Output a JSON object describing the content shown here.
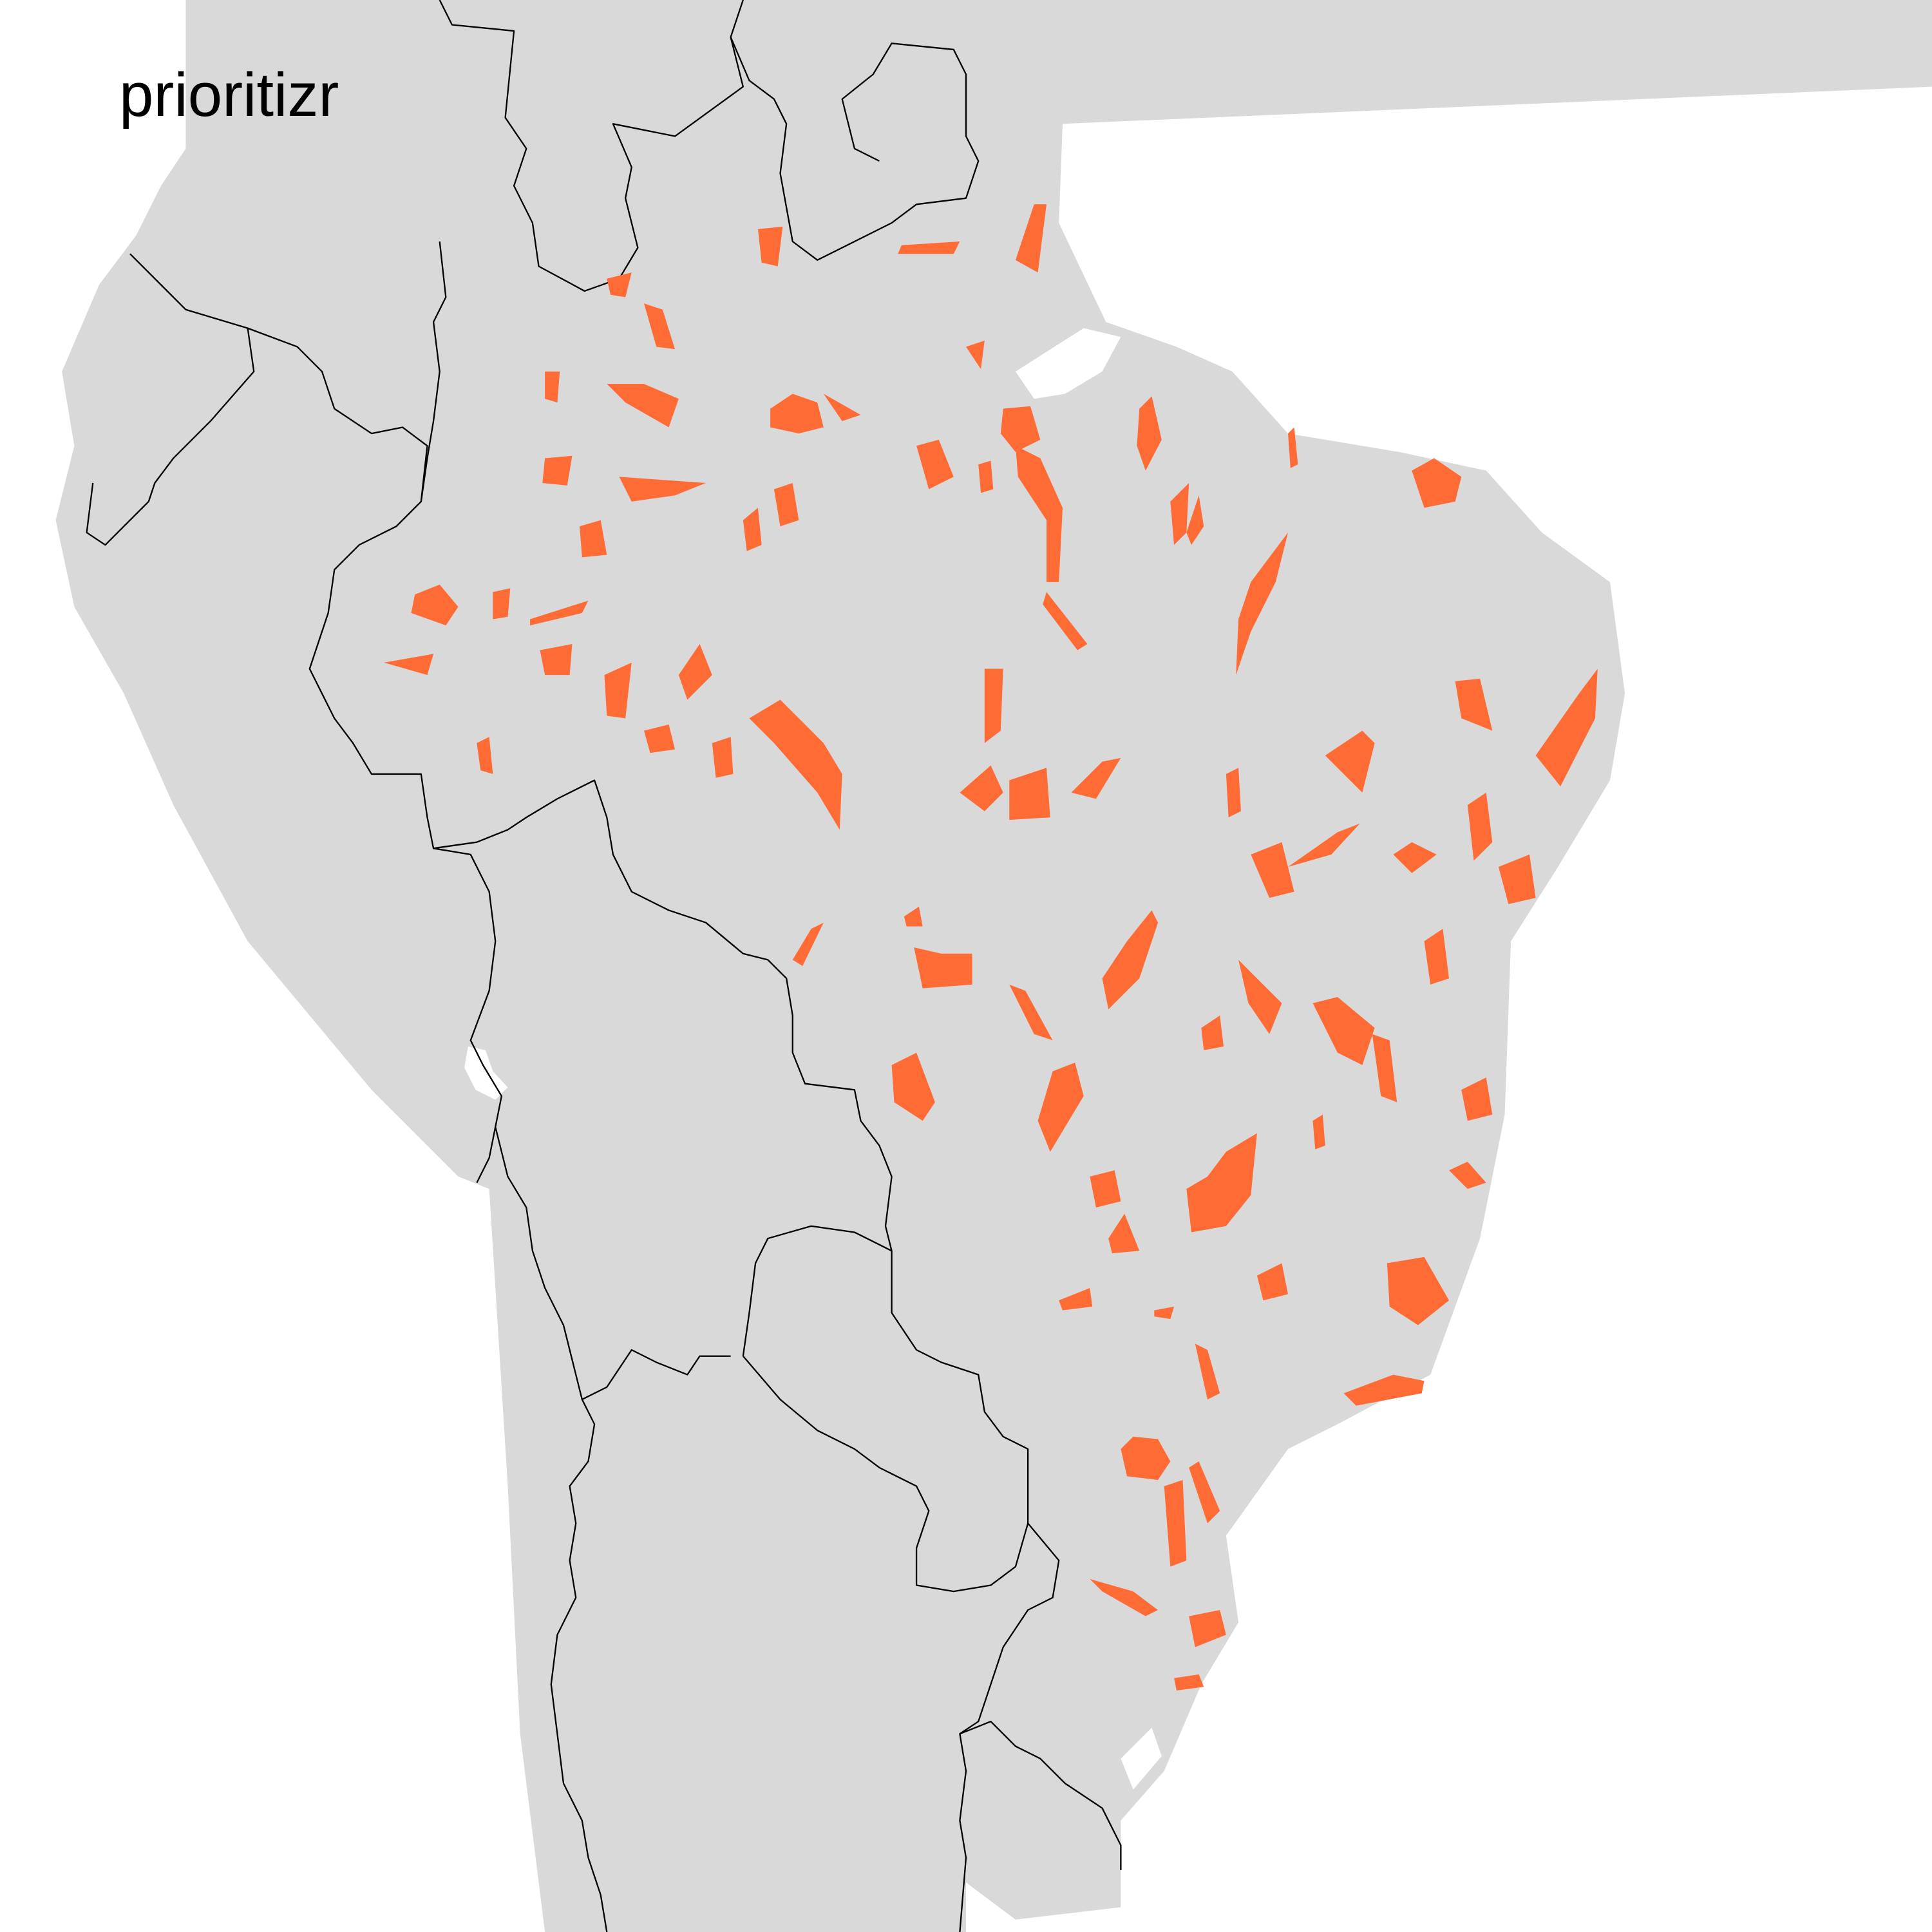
{
  "map": {
    "title": "prioritizr",
    "colors": {
      "background": "#ffffff",
      "land": "#d9d9d9",
      "border": "#000000",
      "selected_planning_units": "#ff6b35",
      "water": "#ffffff"
    }
  }
}
